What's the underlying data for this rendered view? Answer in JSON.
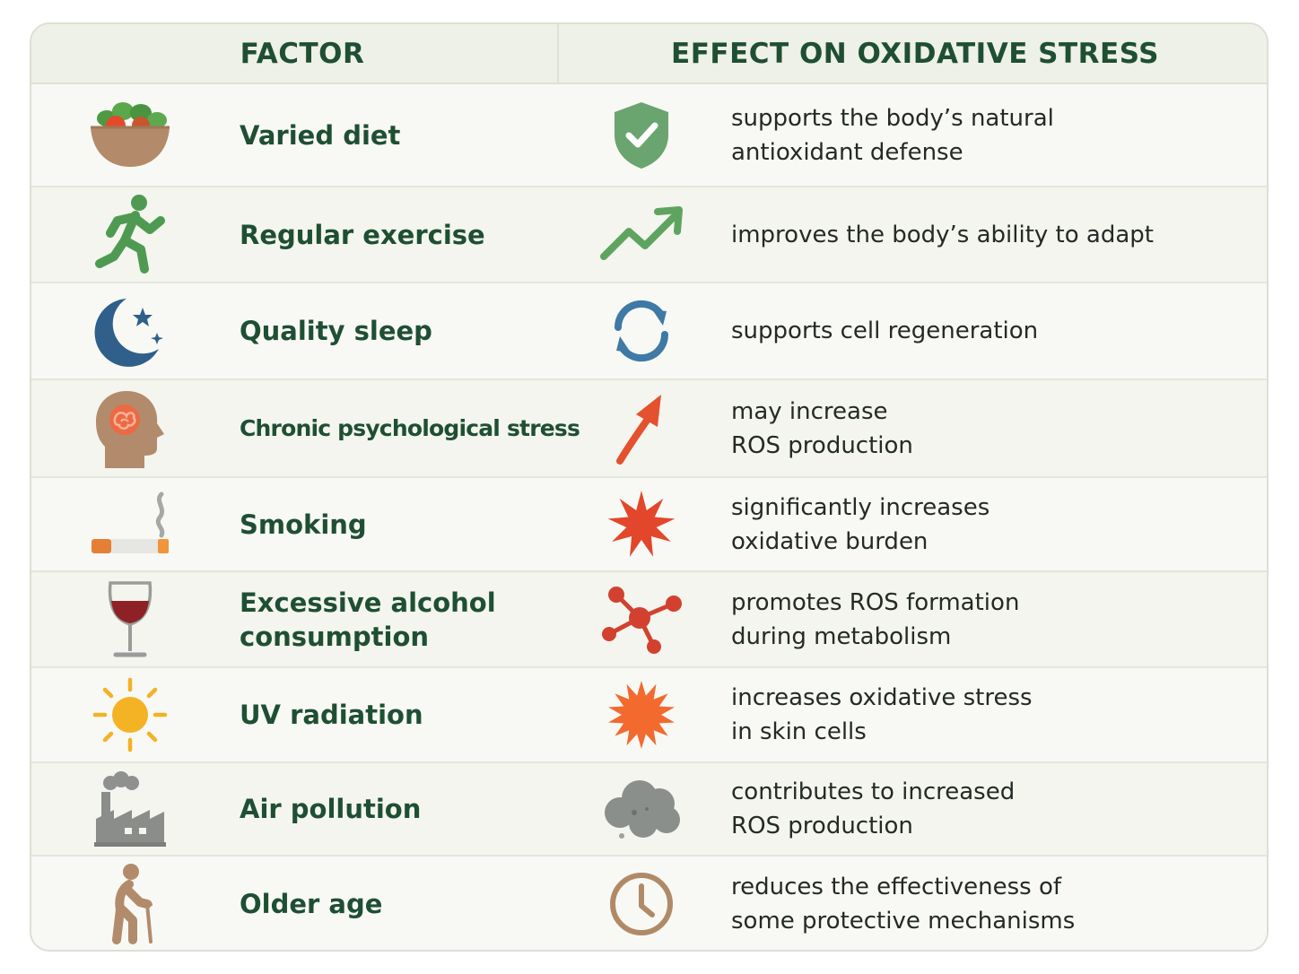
{
  "header": {
    "factor": "FACTOR",
    "effect": "EFFECT ON OXIDATIVE STRESS"
  },
  "rows": [
    {
      "factor": "Varied diet",
      "factor_icon": "salad-bowl-icon",
      "effect": "supports the body’s natural\nantioxidant defense",
      "effect_icon": "shield-check-icon",
      "effect_color": "#6aa46f"
    },
    {
      "factor": "Regular exercise",
      "factor_icon": "running-person-icon",
      "effect": "improves the body’s ability to adapt",
      "effect_icon": "trending-up-icon",
      "effect_color": "#5fa361"
    },
    {
      "factor": "Quality sleep",
      "factor_icon": "moon-stars-icon",
      "effect": "supports cell regeneration",
      "effect_icon": "refresh-cycle-icon",
      "effect_color": "#3f79a5"
    },
    {
      "factor": "Chronic psychological stress",
      "factor_icon": "head-brain-icon",
      "effect": "may increase\nROS production",
      "effect_icon": "arrow-up-right-icon",
      "effect_color": "#e4512f"
    },
    {
      "factor": "Smoking",
      "factor_icon": "cigarette-icon",
      "effect": "significantly increases\noxidative burden",
      "effect_icon": "burst-icon",
      "effect_color": "#e2472c"
    },
    {
      "factor": "Excessive alcohol\nconsumption",
      "factor_icon": "wine-glass-icon",
      "effect": "promotes ROS formation\nduring metabolism",
      "effect_icon": "molecule-icon",
      "effect_color": "#d2412f"
    },
    {
      "factor": "UV radiation",
      "factor_icon": "sun-icon",
      "effect": "increases oxidative stress\nin skin cells",
      "effect_icon": "burst-icon",
      "effect_color": "#f26a2e"
    },
    {
      "factor": "Air pollution",
      "factor_icon": "factory-icon",
      "effect": "contributes to increased\nROS production",
      "effect_icon": "smog-cloud-icon",
      "effect_color": "#8b8f8c"
    },
    {
      "factor": "Older age",
      "factor_icon": "elderly-person-cane-icon",
      "effect": "reduces the effectiveness of\nsome protective mechanisms",
      "effect_icon": "clock-icon",
      "effect_color": "#b08a67"
    }
  ]
}
